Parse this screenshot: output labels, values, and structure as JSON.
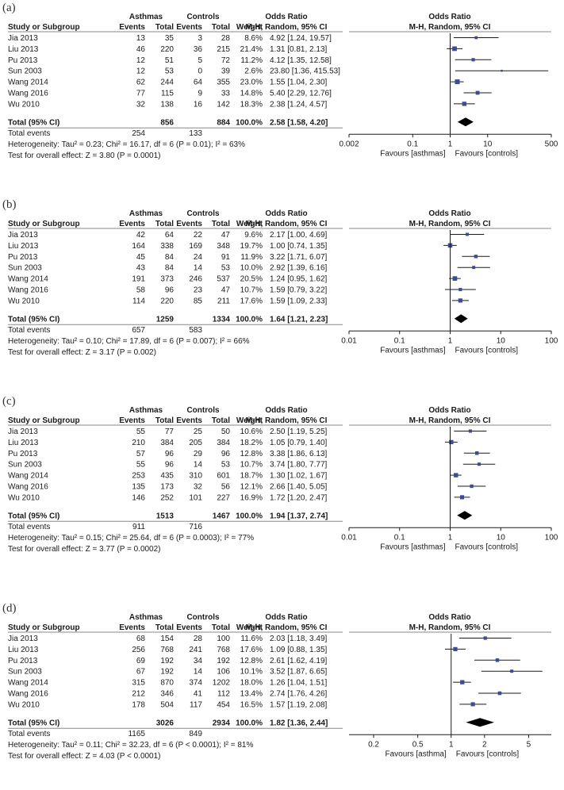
{
  "colors": {
    "marker": "#3b4a99",
    "line": "#1a1a1a",
    "rule": "#888888"
  },
  "headers": {
    "study": "Study or Subgroup",
    "group1": "Asthmas",
    "group2": "Controls",
    "events": "Events",
    "total": "Total",
    "weight": "Weight",
    "or_title": "Odds Ratio",
    "or_method": "M-H, Random, 95% CI",
    "total_row_label": "Total (95% CI)",
    "total_events_label": "Total events"
  },
  "chart_data": [
    {
      "type": "forest",
      "panel_label": "(a)",
      "studies": [
        {
          "name": "Jia 2013",
          "e1": "13",
          "n1": "35",
          "e2": "3",
          "n2": "28",
          "weight": "8.6%",
          "ci_text": "4.92 [1.24, 19.57]",
          "or": 4.92,
          "lo": 1.24,
          "hi": 19.57
        },
        {
          "name": "Liu 2013",
          "e1": "46",
          "n1": "220",
          "e2": "36",
          "n2": "215",
          "weight": "21.4%",
          "ci_text": "1.31 [0.81, 2.13]",
          "or": 1.31,
          "lo": 0.81,
          "hi": 2.13
        },
        {
          "name": "Pu 2013",
          "e1": "12",
          "n1": "51",
          "e2": "5",
          "n2": "72",
          "weight": "11.2%",
          "ci_text": "4.12 [1.35, 12.58]",
          "or": 4.12,
          "lo": 1.35,
          "hi": 12.58
        },
        {
          "name": "Sun 2003",
          "e1": "12",
          "n1": "53",
          "e2": "0",
          "n2": "39",
          "weight": "2.6%",
          "ci_text": "23.80 [1.36, 415.53]",
          "or": 23.8,
          "lo": 1.36,
          "hi": 415.53
        },
        {
          "name": "Wang 2014",
          "e1": "62",
          "n1": "244",
          "e2": "64",
          "n2": "355",
          "weight": "23.0%",
          "ci_text": "1.55 [1.04, 2.30]",
          "or": 1.55,
          "lo": 1.04,
          "hi": 2.3
        },
        {
          "name": "Wang 2016",
          "e1": "77",
          "n1": "115",
          "e2": "9",
          "n2": "33",
          "weight": "14.8%",
          "ci_text": "5.40 [2.29, 12.76]",
          "or": 5.4,
          "lo": 2.29,
          "hi": 12.76
        },
        {
          "name": "Wu 2010",
          "e1": "32",
          "n1": "138",
          "e2": "16",
          "n2": "142",
          "weight": "18.3%",
          "ci_text": "2.38 [1.24, 4.57]",
          "or": 2.38,
          "lo": 1.24,
          "hi": 4.57
        }
      ],
      "total": {
        "n1": "856",
        "n2": "884",
        "weight": "100.0%",
        "ci_text": "2.58 [1.58, 4.20]",
        "or": 2.58,
        "lo": 1.58,
        "hi": 4.2
      },
      "total_events": {
        "e1": "254",
        "e2": "133"
      },
      "heterogeneity": "Heterogeneity: Tau² = 0.23; Chi² = 16.17, df = 6 (P = 0.01); I² = 63%",
      "overall_effect": "Test for overall effect: Z = 3.80 (P = 0.0001)",
      "axis": {
        "scale": "log",
        "min": 0.002,
        "max": 500,
        "ticks": [
          0.002,
          0.1,
          1,
          10,
          500
        ],
        "tick_labels": [
          "0.002",
          "0.1",
          "1",
          "10",
          "500"
        ]
      },
      "favours_left": "Favours [asthmas]",
      "favours_right": "Favours [controls]"
    },
    {
      "type": "forest",
      "panel_label": "(b)",
      "studies": [
        {
          "name": "Jia 2013",
          "e1": "42",
          "n1": "64",
          "e2": "22",
          "n2": "47",
          "weight": "9.6%",
          "ci_text": "2.17 [1.00, 4.69]",
          "or": 2.17,
          "lo": 1.0,
          "hi": 4.69
        },
        {
          "name": "Liu 2013",
          "e1": "164",
          "n1": "338",
          "e2": "169",
          "n2": "348",
          "weight": "19.7%",
          "ci_text": "1.00 [0.74, 1.35]",
          "or": 1.0,
          "lo": 0.74,
          "hi": 1.35
        },
        {
          "name": "Pu 2013",
          "e1": "45",
          "n1": "84",
          "e2": "24",
          "n2": "91",
          "weight": "11.9%",
          "ci_text": "3.22 [1.71, 6.07]",
          "or": 3.22,
          "lo": 1.71,
          "hi": 6.07
        },
        {
          "name": "Sun 2003",
          "e1": "43",
          "n1": "84",
          "e2": "14",
          "n2": "53",
          "weight": "10.0%",
          "ci_text": "2.92 [1.39, 6.16]",
          "or": 2.92,
          "lo": 1.39,
          "hi": 6.16
        },
        {
          "name": "Wang 2014",
          "e1": "191",
          "n1": "373",
          "e2": "246",
          "n2": "537",
          "weight": "20.5%",
          "ci_text": "1.24 [0.95, 1.62]",
          "or": 1.24,
          "lo": 0.95,
          "hi": 1.62
        },
        {
          "name": "Wang 2016",
          "e1": "58",
          "n1": "96",
          "e2": "23",
          "n2": "47",
          "weight": "10.7%",
          "ci_text": "1.59 [0.79, 3.22]",
          "or": 1.59,
          "lo": 0.79,
          "hi": 3.22
        },
        {
          "name": "Wu 2010",
          "e1": "114",
          "n1": "220",
          "e2": "85",
          "n2": "211",
          "weight": "17.6%",
          "ci_text": "1.59 [1.09, 2.33]",
          "or": 1.59,
          "lo": 1.09,
          "hi": 2.33
        }
      ],
      "total": {
        "n1": "1259",
        "n2": "1334",
        "weight": "100.0%",
        "ci_text": "1.64 [1.21, 2.23]",
        "or": 1.64,
        "lo": 1.21,
        "hi": 2.23
      },
      "total_events": {
        "e1": "657",
        "e2": "583"
      },
      "heterogeneity": "Heterogeneity: Tau² = 0.10; Chi² = 17.89, df = 6 (P = 0.007); I² = 66%",
      "overall_effect": "Test for overall effect: Z = 3.17 (P = 0.002)",
      "axis": {
        "scale": "log",
        "min": 0.01,
        "max": 100,
        "ticks": [
          0.01,
          0.1,
          1,
          10,
          100
        ],
        "tick_labels": [
          "0.01",
          "0.1",
          "1",
          "10",
          "100"
        ]
      },
      "favours_left": "Favours [asthmas]",
      "favours_right": "Favours [controls]"
    },
    {
      "type": "forest",
      "panel_label": "(c)",
      "studies": [
        {
          "name": "Jia 2013",
          "e1": "55",
          "n1": "77",
          "e2": "25",
          "n2": "50",
          "weight": "10.6%",
          "ci_text": "2.50 [1.19, 5.25]",
          "or": 2.5,
          "lo": 1.19,
          "hi": 5.25
        },
        {
          "name": "Liu 2013",
          "e1": "210",
          "n1": "384",
          "e2": "205",
          "n2": "384",
          "weight": "18.2%",
          "ci_text": "1.05 [0.79, 1.40]",
          "or": 1.05,
          "lo": 0.79,
          "hi": 1.4
        },
        {
          "name": "Pu 2013",
          "e1": "57",
          "n1": "96",
          "e2": "29",
          "n2": "96",
          "weight": "12.8%",
          "ci_text": "3.38 [1.86, 6.13]",
          "or": 3.38,
          "lo": 1.86,
          "hi": 6.13
        },
        {
          "name": "Sun 2003",
          "e1": "55",
          "n1": "96",
          "e2": "14",
          "n2": "53",
          "weight": "10.7%",
          "ci_text": "3.74 [1.80, 7.77]",
          "or": 3.74,
          "lo": 1.8,
          "hi": 7.77
        },
        {
          "name": "Wang 2014",
          "e1": "253",
          "n1": "435",
          "e2": "310",
          "n2": "601",
          "weight": "18.7%",
          "ci_text": "1.30 [1.02, 1.67]",
          "or": 1.3,
          "lo": 1.02,
          "hi": 1.67
        },
        {
          "name": "Wang 2016",
          "e1": "135",
          "n1": "173",
          "e2": "32",
          "n2": "56",
          "weight": "12.1%",
          "ci_text": "2.66 [1.40, 5.05]",
          "or": 2.66,
          "lo": 1.4,
          "hi": 5.05
        },
        {
          "name": "Wu 2010",
          "e1": "146",
          "n1": "252",
          "e2": "101",
          "n2": "227",
          "weight": "16.9%",
          "ci_text": "1.72 [1.20, 2.47]",
          "or": 1.72,
          "lo": 1.2,
          "hi": 2.47
        }
      ],
      "total": {
        "n1": "1513",
        "n2": "1467",
        "weight": "100.0%",
        "ci_text": "1.94 [1.37, 2.74]",
        "or": 1.94,
        "lo": 1.37,
        "hi": 2.74
      },
      "total_events": {
        "e1": "911",
        "e2": "716"
      },
      "heterogeneity": "Heterogeneity: Tau² = 0.15; Chi² = 25.64, df = 6 (P = 0.0003); I² = 77%",
      "overall_effect": "Test for overall effect: Z = 3.77 (P = 0.0002)",
      "axis": {
        "scale": "log",
        "min": 0.01,
        "max": 100,
        "ticks": [
          0.01,
          0.1,
          1,
          10,
          100
        ],
        "tick_labels": [
          "0.01",
          "0.1",
          "1",
          "10",
          "100"
        ]
      },
      "favours_left": "Favours [asthmas]",
      "favours_right": "Favours [controls]"
    },
    {
      "type": "forest",
      "panel_label": "(d)",
      "studies": [
        {
          "name": "Jia 2013",
          "e1": "68",
          "n1": "154",
          "e2": "28",
          "n2": "100",
          "weight": "11.6%",
          "ci_text": "2.03 [1.18, 3.49]",
          "or": 2.03,
          "lo": 1.18,
          "hi": 3.49
        },
        {
          "name": "Liu 2013",
          "e1": "256",
          "n1": "768",
          "e2": "241",
          "n2": "768",
          "weight": "17.6%",
          "ci_text": "1.09 [0.88, 1.35]",
          "or": 1.09,
          "lo": 0.88,
          "hi": 1.35
        },
        {
          "name": "Pu 2013",
          "e1": "69",
          "n1": "192",
          "e2": "34",
          "n2": "192",
          "weight": "12.8%",
          "ci_text": "2.61 [1.62, 4.19]",
          "or": 2.61,
          "lo": 1.62,
          "hi": 4.19
        },
        {
          "name": "Sun 2003",
          "e1": "67",
          "n1": "192",
          "e2": "14",
          "n2": "106",
          "weight": "10.1%",
          "ci_text": "3.52 [1.87, 6.65]",
          "or": 3.52,
          "lo": 1.87,
          "hi": 6.65
        },
        {
          "name": "Wang 2014",
          "e1": "315",
          "n1": "870",
          "e2": "374",
          "n2": "1202",
          "weight": "18.0%",
          "ci_text": "1.26 [1.04, 1.51]",
          "or": 1.26,
          "lo": 1.04,
          "hi": 1.51
        },
        {
          "name": "Wang 2016",
          "e1": "212",
          "n1": "346",
          "e2": "41",
          "n2": "112",
          "weight": "13.4%",
          "ci_text": "2.74 [1.76, 4.26]",
          "or": 2.74,
          "lo": 1.76,
          "hi": 4.26
        },
        {
          "name": "Wu 2010",
          "e1": "178",
          "n1": "504",
          "e2": "117",
          "n2": "454",
          "weight": "16.5%",
          "ci_text": "1.57 [1.19, 2.08]",
          "or": 1.57,
          "lo": 1.19,
          "hi": 2.08
        }
      ],
      "total": {
        "n1": "3026",
        "n2": "2934",
        "weight": "100.0%",
        "ci_text": "1.82 [1.36, 2.44]",
        "or": 1.82,
        "lo": 1.36,
        "hi": 2.44
      },
      "total_events": {
        "e1": "1165",
        "e2": "849"
      },
      "heterogeneity": "Heterogeneity: Tau² = 0.11; Chi² = 32.23, df = 6 (P < 0.0001); I² = 81%",
      "overall_effect": "Test for overall effect: Z = 4.03 (P < 0.0001)",
      "axis": {
        "scale": "log",
        "min": 0.12,
        "max": 8,
        "ticks": [
          0.2,
          0.5,
          1,
          2,
          5
        ],
        "tick_labels": [
          "0.2",
          "0.5",
          "1",
          "2",
          "5"
        ]
      },
      "favours_left": "Favours [asthma]",
      "favours_right": "Favours [controls]"
    }
  ]
}
